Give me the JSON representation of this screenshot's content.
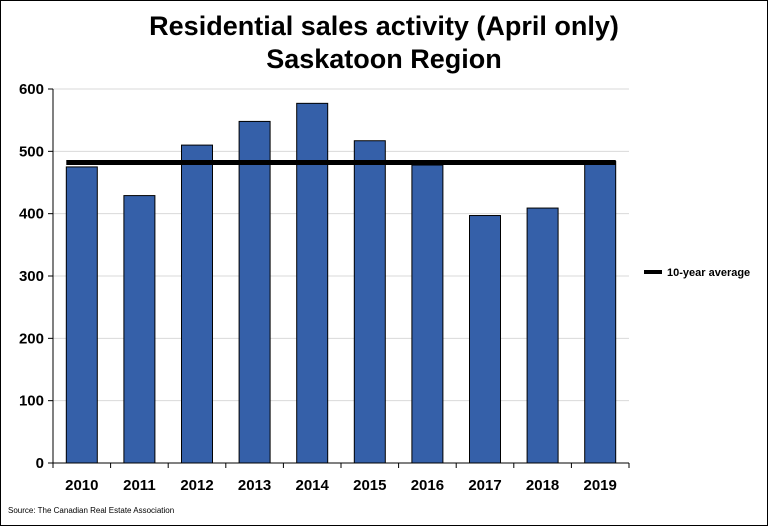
{
  "chart_data": {
    "type": "bar",
    "title": "Residential sales activity (April only)",
    "subtitle": "Saskatoon Region",
    "categories": [
      "2010",
      "2011",
      "2012",
      "2013",
      "2014",
      "2015",
      "2016",
      "2017",
      "2018",
      "2019"
    ],
    "series": [
      {
        "values": [
          475,
          429,
          510,
          548,
          577,
          517,
          478,
          397,
          409,
          484
        ],
        "color": "#3560a9"
      }
    ],
    "reference_line": {
      "name": "10-year average",
      "value": 482,
      "color": "#000000"
    },
    "ylim": [
      0,
      600
    ],
    "yticks": [
      0,
      100,
      200,
      300,
      400,
      500,
      600
    ],
    "grid": true,
    "legend": "right",
    "source": "Source: The Canadian Real Estate Association"
  }
}
